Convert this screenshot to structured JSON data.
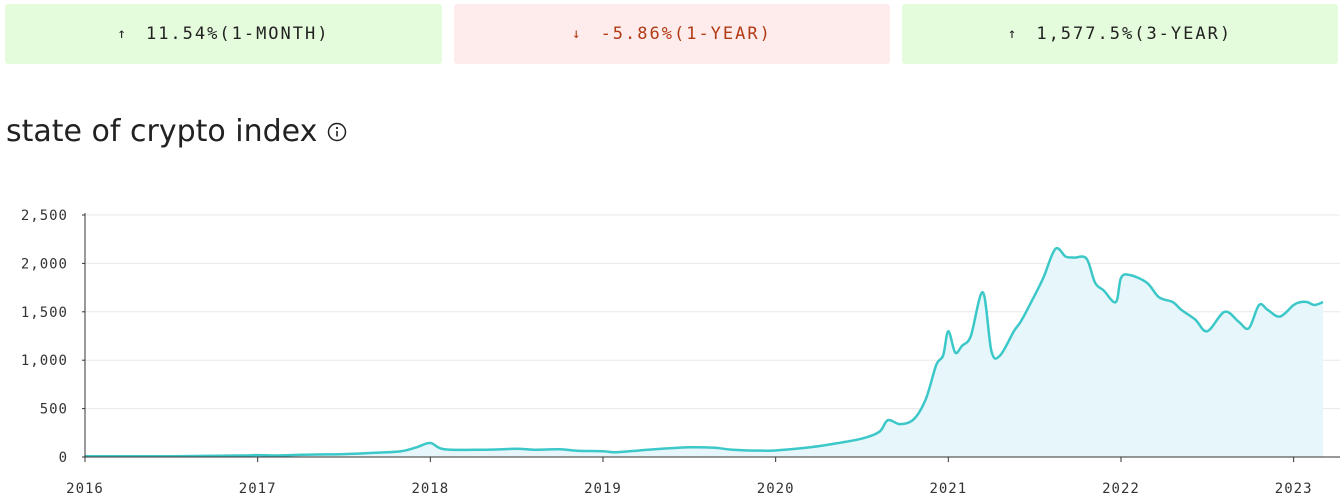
{
  "stats": [
    {
      "direction": "up",
      "arrow": "↑",
      "value": "11.54%(1-MONTH)"
    },
    {
      "direction": "down",
      "arrow": "↓",
      "value": "-5.86%(1-YEAR)"
    },
    {
      "direction": "up",
      "arrow": "↑",
      "value": "1,577.5%(3-YEAR)"
    }
  ],
  "title": "state of crypto index",
  "icons": {
    "info": "info-circle-icon"
  },
  "colors": {
    "line": "#3cc8c8",
    "area": "#e6f6fa",
    "up_bg": "#e4fbdc",
    "down_bg": "#fdeceb",
    "down_text": "#b23a14"
  },
  "chart_data": {
    "type": "area",
    "title": "state of crypto index",
    "xlabel": "",
    "ylabel": "",
    "ylim": [
      0,
      2500
    ],
    "xlim": [
      2016.0,
      2023.17
    ],
    "grid": true,
    "y_ticks": [
      "0",
      "500",
      "1,000",
      "1,500",
      "2,000",
      "2,500"
    ],
    "y_tick_values": [
      0,
      500,
      1000,
      1500,
      2000,
      2500
    ],
    "x_ticks": [
      "2016",
      "2017",
      "2018",
      "2019",
      "2020",
      "2021",
      "2022",
      "2023"
    ],
    "x_tick_values": [
      2016,
      2017,
      2018,
      2019,
      2020,
      2021,
      2022,
      2023
    ],
    "series": [
      {
        "x": [
          2016.0,
          2016.5,
          2016.9,
          2017.0,
          2017.1,
          2017.3,
          2017.5,
          2017.7,
          2017.83,
          2017.92,
          2018.0,
          2018.08,
          2018.3,
          2018.5,
          2018.6,
          2018.75,
          2018.85,
          2019.0,
          2019.08,
          2019.3,
          2019.5,
          2019.65,
          2019.75,
          2019.95,
          2020.05,
          2020.2,
          2020.35,
          2020.5,
          2020.6,
          2020.65,
          2020.72,
          2020.8,
          2020.87,
          2020.93,
          2020.97,
          2021.0,
          2021.04,
          2021.08,
          2021.13,
          2021.2,
          2021.25,
          2021.3,
          2021.38,
          2021.42,
          2021.48,
          2021.55,
          2021.62,
          2021.68,
          2021.73,
          2021.8,
          2021.85,
          2021.9,
          2021.97,
          2022.0,
          2022.05,
          2022.15,
          2022.22,
          2022.3,
          2022.35,
          2022.43,
          2022.5,
          2022.6,
          2022.68,
          2022.74,
          2022.8,
          2022.85,
          2022.92,
          2023.0,
          2023.04,
          2023.08,
          2023.12,
          2023.17
        ],
        "values": [
          8,
          8,
          15,
          20,
          15,
          25,
          30,
          45,
          60,
          100,
          145,
          80,
          75,
          85,
          75,
          80,
          65,
          60,
          50,
          80,
          100,
          95,
          75,
          65,
          75,
          100,
          140,
          190,
          260,
          380,
          340,
          390,
          600,
          950,
          1050,
          1300,
          1080,
          1150,
          1250,
          1700,
          1090,
          1050,
          1300,
          1400,
          1600,
          1850,
          2150,
          2070,
          2060,
          2050,
          1800,
          1720,
          1600,
          1850,
          1880,
          1800,
          1650,
          1600,
          1520,
          1420,
          1300,
          1500,
          1400,
          1330,
          1570,
          1520,
          1450,
          1570,
          1600,
          1600,
          1570,
          1600
        ]
      }
    ]
  }
}
